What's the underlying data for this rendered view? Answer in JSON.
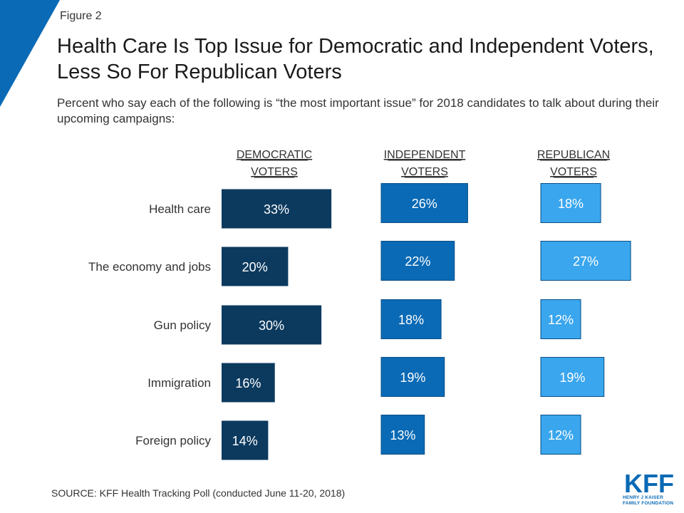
{
  "figure_label": "Figure 2",
  "colors": {
    "accent": "#0a6ab5",
    "democratic": "#0c3a5f",
    "independent": "#0a6ab5",
    "republican": "#3aa6ee"
  },
  "source": "SOURCE: KFF Health Tracking Poll (conducted June 11-20, 2018)",
  "logo": {
    "mark": "KFF",
    "line1": "HENRY J KAISER",
    "line2": "FAMILY FOUNDATION"
  },
  "chart_data": {
    "type": "bar",
    "title": "Health Care Is Top Issue for Democratic and Independent Voters, Less So For Republican Voters",
    "subtitle": "Percent who say each of the following is “the most important issue” for 2018 candidates to talk about during their upcoming campaigns:",
    "categories": [
      "Health care",
      "The economy and jobs",
      "Gun policy",
      "Immigration",
      "Foreign policy"
    ],
    "series": [
      {
        "name": "DEMOCRATIC VOTERS",
        "name_lines": [
          "DEMOCRATIC",
          "VOTERS"
        ],
        "values": [
          33,
          20,
          30,
          16,
          14
        ],
        "labels": [
          "33%",
          "20%",
          "30%",
          "16%",
          "14%"
        ]
      },
      {
        "name": "INDEPENDENT VOTERS",
        "name_lines": [
          "INDEPENDENT",
          "VOTERS"
        ],
        "values": [
          26,
          22,
          18,
          19,
          13
        ],
        "labels": [
          "26%",
          "22%",
          "18%",
          "19%",
          "13%"
        ]
      },
      {
        "name": "REPUBLICAN VOTERS",
        "name_lines": [
          "REPUBLICAN",
          "VOTERS"
        ],
        "values": [
          18,
          27,
          12,
          19,
          12
        ],
        "labels": [
          "18%",
          "27%",
          "12%",
          "19%",
          "12%"
        ]
      }
    ],
    "orientation": "horizontal",
    "grid": false,
    "legend": "none"
  }
}
